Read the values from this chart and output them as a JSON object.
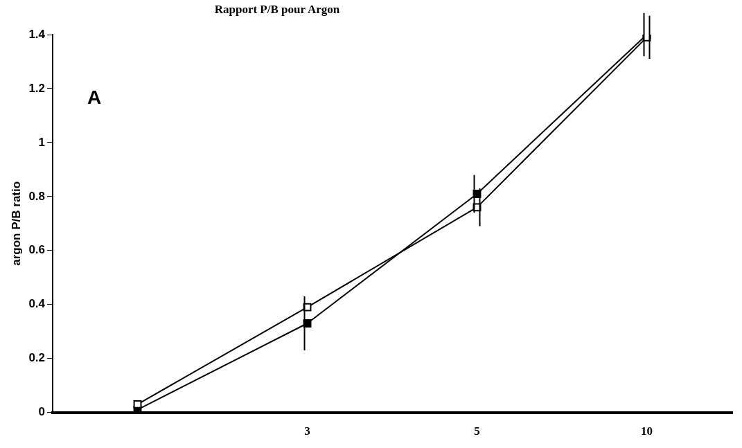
{
  "chart_data": {
    "type": "line",
    "title": "Rapport  P/B pour Argon",
    "ylabel": "argon P/B ratio",
    "annotations": [
      "A"
    ],
    "categories": [
      null,
      "3",
      "5",
      "10"
    ],
    "series": [
      {
        "color": "#000000",
        "marker": "square",
        "values": [
          0.03,
          0.39,
          0.76,
          1.39
        ],
        "errors": [
          null,
          null,
          0.07,
          0.08
        ]
      },
      {
        "color": "#000000",
        "marker": "square",
        "values": [
          0.01,
          0.33,
          0.81,
          1.4
        ],
        "errors": [
          null,
          0.1,
          0.07,
          0.08
        ]
      }
    ],
    "ylim": [
      0,
      1.4
    ],
    "yticks": [
      0,
      0.2,
      0.4,
      0.6,
      0.8,
      1,
      1.2,
      1.4
    ],
    "grid": false,
    "legend": false,
    "line_style": "solid"
  }
}
